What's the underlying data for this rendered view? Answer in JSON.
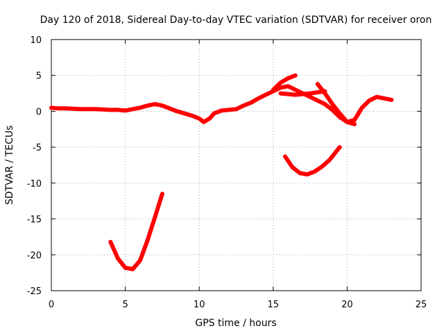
{
  "chart_data": {
    "type": "line",
    "title": "Day 120 of 2018, Sidereal Day-to-day VTEC variation (SDTVAR) for receiver oron",
    "xlabel": "GPS time / hours",
    "ylabel": "SDTVAR / TECUs",
    "xlim": [
      0,
      25
    ],
    "ylim": [
      -25,
      10
    ],
    "xticks": [
      0,
      5,
      10,
      15,
      20,
      25
    ],
    "yticks": [
      10,
      5,
      0,
      -5,
      -10,
      -15,
      -20,
      -25
    ],
    "grid": true,
    "series": [
      {
        "name": "SDTVAR",
        "color": "#ff0000",
        "segments": [
          {
            "x": [
              0,
              0.5,
              1,
              2,
              3,
              4,
              4.5,
              5,
              5.5,
              6,
              6.5,
              7,
              7.5,
              8,
              8.5,
              9,
              9.5,
              10,
              10.3,
              10.7,
              11,
              11.5,
              12,
              12.5,
              13,
              13.5,
              14,
              14.5,
              15,
              15.5,
              16,
              16.5,
              17,
              17.5,
              18,
              18.5,
              19,
              19.5,
              20,
              20.5,
              21,
              21.5,
              22,
              22.5,
              23
            ],
            "y": [
              0.5,
              0.4,
              0.4,
              0.3,
              0.3,
              0.2,
              0.2,
              0.1,
              0.3,
              0.5,
              0.8,
              1.0,
              0.8,
              0.4,
              0.0,
              -0.3,
              -0.6,
              -1.0,
              -1.5,
              -1.0,
              -0.3,
              0.1,
              0.2,
              0.3,
              0.8,
              1.2,
              1.8,
              2.3,
              2.8,
              3.3,
              3.5,
              3.0,
              2.5,
              2.0,
              1.5,
              1.0,
              0.2,
              -0.8,
              -1.5,
              -1.2,
              0.5,
              1.5,
              2.0,
              1.8,
              1.6
            ]
          },
          {
            "x": [
              15,
              15.5,
              16,
              16.5
            ],
            "y": [
              3.0,
              4.0,
              4.6,
              5.0
            ]
          },
          {
            "x": [
              15.5,
              16.5,
              17.5,
              18.5
            ],
            "y": [
              2.5,
              2.3,
              2.5,
              2.8
            ]
          },
          {
            "x": [
              18.0,
              18.5,
              19.0,
              19.5,
              20.0,
              20.5
            ],
            "y": [
              3.8,
              2.5,
              1.0,
              -0.3,
              -1.5,
              -1.8
            ]
          },
          {
            "x": [
              4,
              4.5,
              5,
              5.5,
              6,
              6.5,
              7,
              7.5
            ],
            "y": [
              -18.2,
              -20.5,
              -21.8,
              -22.0,
              -20.8,
              -18.0,
              -14.8,
              -11.5
            ]
          },
          {
            "x": [
              15.8,
              16.3,
              16.8,
              17.3,
              17.8,
              18.3,
              18.8,
              19.5
            ],
            "y": [
              -6.3,
              -7.8,
              -8.6,
              -8.8,
              -8.4,
              -7.7,
              -6.8,
              -5.0
            ]
          }
        ]
      }
    ]
  }
}
